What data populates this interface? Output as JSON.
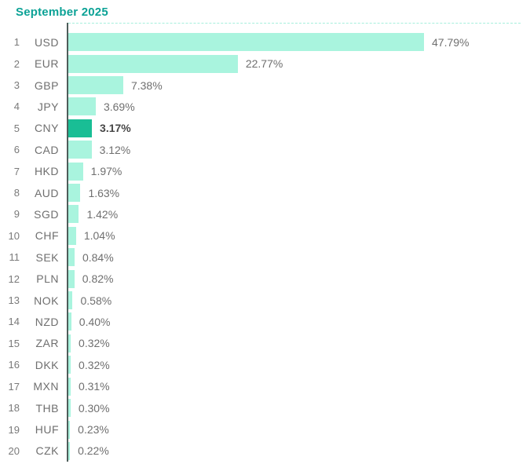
{
  "header": {
    "title": "September 2025"
  },
  "chart_data": {
    "type": "bar",
    "orientation": "horizontal",
    "title": "September 2025",
    "value_unit": "%",
    "xlim": [
      0,
      47.79
    ],
    "grid": "dashed-top-line",
    "legend": "none",
    "highlighted_category": "CNY",
    "categories": [
      "USD",
      "EUR",
      "GBP",
      "JPY",
      "CNY",
      "CAD",
      "HKD",
      "AUD",
      "SGD",
      "CHF",
      "SEK",
      "PLN",
      "NOK",
      "NZD",
      "ZAR",
      "DKK",
      "MXN",
      "THB",
      "HUF",
      "CZK"
    ],
    "values": [
      47.79,
      22.77,
      7.38,
      3.69,
      3.17,
      3.12,
      1.97,
      1.63,
      1.42,
      1.04,
      0.84,
      0.82,
      0.58,
      0.4,
      0.32,
      0.32,
      0.31,
      0.3,
      0.23,
      0.22
    ],
    "rows": [
      {
        "rank": "1",
        "code": "USD",
        "value": 47.79,
        "label": "47.79%",
        "highlight": false
      },
      {
        "rank": "2",
        "code": "EUR",
        "value": 22.77,
        "label": "22.77%",
        "highlight": false
      },
      {
        "rank": "3",
        "code": "GBP",
        "value": 7.38,
        "label": "7.38%",
        "highlight": false
      },
      {
        "rank": "4",
        "code": "JPY",
        "value": 3.69,
        "label": "3.69%",
        "highlight": false
      },
      {
        "rank": "5",
        "code": "CNY",
        "value": 3.17,
        "label": "3.17%",
        "highlight": true
      },
      {
        "rank": "6",
        "code": "CAD",
        "value": 3.12,
        "label": "3.12%",
        "highlight": false
      },
      {
        "rank": "7",
        "code": "HKD",
        "value": 1.97,
        "label": "1.97%",
        "highlight": false
      },
      {
        "rank": "8",
        "code": "AUD",
        "value": 1.63,
        "label": "1.63%",
        "highlight": false
      },
      {
        "rank": "9",
        "code": "SGD",
        "value": 1.42,
        "label": "1.42%",
        "highlight": false
      },
      {
        "rank": "10",
        "code": "CHF",
        "value": 1.04,
        "label": "1.04%",
        "highlight": false
      },
      {
        "rank": "11",
        "code": "SEK",
        "value": 0.84,
        "label": "0.84%",
        "highlight": false
      },
      {
        "rank": "12",
        "code": "PLN",
        "value": 0.82,
        "label": "0.82%",
        "highlight": false
      },
      {
        "rank": "13",
        "code": "NOK",
        "value": 0.58,
        "label": "0.58%",
        "highlight": false
      },
      {
        "rank": "14",
        "code": "NZD",
        "value": 0.4,
        "label": "0.40%",
        "highlight": false
      },
      {
        "rank": "15",
        "code": "ZAR",
        "value": 0.32,
        "label": "0.32%",
        "highlight": false
      },
      {
        "rank": "16",
        "code": "DKK",
        "value": 0.32,
        "label": "0.32%",
        "highlight": false
      },
      {
        "rank": "17",
        "code": "MXN",
        "value": 0.31,
        "label": "0.31%",
        "highlight": false
      },
      {
        "rank": "18",
        "code": "THB",
        "value": 0.3,
        "label": "0.30%",
        "highlight": false
      },
      {
        "rank": "19",
        "code": "HUF",
        "value": 0.23,
        "label": "0.23%",
        "highlight": false
      },
      {
        "rank": "20",
        "code": "CZK",
        "value": 0.22,
        "label": "0.22%",
        "highlight": false
      }
    ],
    "colors": {
      "bar": "#A9F4DE",
      "highlight_bar": "#19BE95",
      "title": "#0CA296",
      "text": "#6F6F6F",
      "highlight_text": "#474747",
      "axis": "#4E5D5A",
      "gridline": "#A5EFDC"
    }
  }
}
